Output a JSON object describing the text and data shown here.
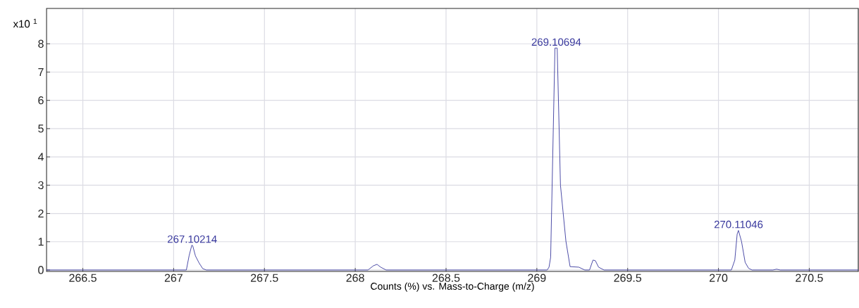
{
  "chart_data": {
    "type": "line",
    "xlabel": "Counts (%) vs. Mass-to-Charge (m/z)",
    "ylabel": "x10 $^{1}$",
    "x": [
      266.3,
      267.05,
      267.07,
      267.085,
      267.1,
      267.105,
      267.12,
      267.14,
      267.16,
      267.18,
      268.07,
      268.1,
      268.12,
      268.14,
      268.17,
      269.057,
      269.067,
      269.076,
      269.0996,
      269.112,
      269.13,
      269.16,
      269.183,
      269.231,
      269.264,
      269.29,
      269.309,
      269.322,
      269.34,
      269.37,
      270.071,
      270.09,
      270.103,
      270.11,
      270.127,
      270.147,
      270.166,
      270.185,
      270.3,
      270.32,
      270.34,
      270.77
    ],
    "values": [
      0,
      0,
      0,
      0.5,
      0.88,
      0.86,
      0.5,
      0.25,
      0.05,
      0,
      0,
      0.15,
      0.2,
      0.1,
      0,
      0,
      0.1,
      0.45,
      7.85,
      7.85,
      3.0,
      1.02,
      0.12,
      0.1,
      0,
      0,
      0.35,
      0.33,
      0.1,
      0,
      0,
      0.35,
      1.27,
      1.4,
      1.01,
      0.27,
      0.06,
      0,
      0,
      0.03,
      0,
      0
    ],
    "color": "#3a3a9e",
    "xlim": [
      266.3,
      270.77
    ],
    "ylim": [
      -0.05,
      9.25
    ],
    "xticks": [
      266.5,
      267,
      267.5,
      268,
      268.5,
      269,
      269.5,
      270,
      270.5
    ],
    "yticks": [
      0,
      1,
      2,
      3,
      4,
      5,
      6,
      7,
      8
    ],
    "grid": true,
    "marker": "none",
    "line_style": "solid",
    "annotations": [
      {
        "text": "267.10214",
        "x": 267.10214,
        "y": 0.88
      },
      {
        "text": "269.10694",
        "x": 269.10694,
        "y": 7.85
      },
      {
        "text": "270.11046",
        "x": 270.11046,
        "y": 1.4
      }
    ]
  }
}
